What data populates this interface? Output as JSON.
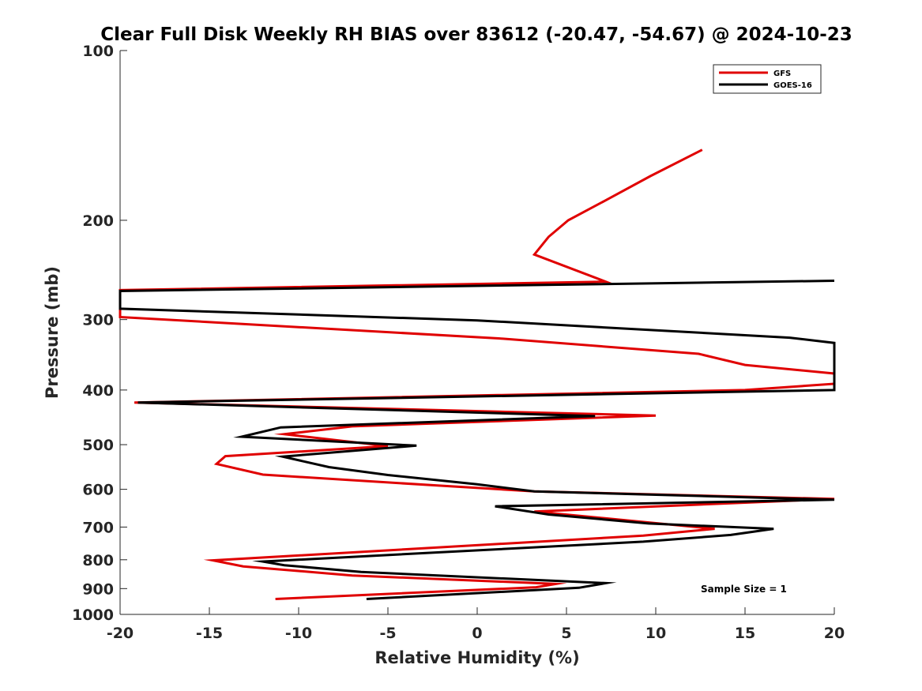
{
  "chart_data": {
    "type": "line",
    "title": "Clear Full Disk Weekly RH BIAS over 83612 (-20.47, -54.67) @ 2024-10-23",
    "xlabel": "Relative Humidity (%)",
    "ylabel": "Pressure (mb)",
    "xlim": [
      -20,
      20
    ],
    "ylim": [
      100,
      1000
    ],
    "yscale": "log",
    "yreversed": true,
    "xticks": [
      -20,
      -15,
      -10,
      -5,
      0,
      5,
      10,
      15,
      20
    ],
    "yticks": [
      100,
      200,
      300,
      400,
      500,
      600,
      700,
      800,
      900,
      1000
    ],
    "xtick_labels": [
      "-20",
      "-15",
      "-10",
      "-5",
      "0",
      "5",
      "10",
      "15",
      "20"
    ],
    "ytick_labels": [
      "100",
      "200",
      "300",
      "400",
      "500",
      "600",
      "700",
      "800",
      "900",
      "1000"
    ],
    "grid": false,
    "legend_position": "top-right",
    "annotation": "Sample Size = 1",
    "series": [
      {
        "name": "GFS",
        "color": "#e00000",
        "points": [
          [
            12.6,
            150
          ],
          [
            9.7,
            167
          ],
          [
            7.1,
            185
          ],
          [
            5.1,
            200
          ],
          [
            4.0,
            214
          ],
          [
            3.2,
            230
          ],
          [
            7.2,
            257
          ],
          [
            -20,
            266
          ],
          [
            -20,
            297
          ],
          [
            1.2,
            324
          ],
          [
            12.4,
            345
          ],
          [
            15.0,
            361
          ],
          [
            20,
            374
          ],
          [
            20,
            390
          ],
          [
            15.0,
            400
          ],
          [
            -19.2,
            421
          ],
          [
            10.0,
            444
          ],
          [
            -7.0,
            464
          ],
          [
            -10.8,
            479
          ],
          [
            -5.0,
            503
          ],
          [
            -14.1,
            524
          ],
          [
            -14.6,
            541
          ],
          [
            -12.0,
            565
          ],
          [
            -2.5,
            590
          ],
          [
            3.2,
            605
          ],
          [
            20,
            624
          ],
          [
            3.2,
            657
          ],
          [
            13.3,
            705
          ],
          [
            9.3,
            725
          ],
          [
            -14.8,
            802
          ],
          [
            -13.1,
            822
          ],
          [
            -7.0,
            853
          ],
          [
            4.4,
            883
          ],
          [
            3.3,
            895
          ],
          [
            -11.3,
            939
          ]
        ]
      },
      {
        "name": "GOES-16",
        "color": "#000000",
        "points": [
          [
            20,
            256
          ],
          [
            -20,
            267
          ],
          [
            -20,
            287
          ],
          [
            0.0,
            301
          ],
          [
            17.5,
            323
          ],
          [
            20,
            330
          ],
          [
            20,
            400
          ],
          [
            -19.0,
            421
          ],
          [
            6.6,
            445
          ],
          [
            -11.0,
            466
          ],
          [
            -13.2,
            484
          ],
          [
            -3.4,
            502
          ],
          [
            -10.9,
            525
          ],
          [
            -8.3,
            548
          ],
          [
            -5.0,
            566
          ],
          [
            0.0,
            588
          ],
          [
            3.2,
            605
          ],
          [
            20,
            626
          ],
          [
            1.0,
            643
          ],
          [
            4.0,
            665
          ],
          [
            9.6,
            690
          ],
          [
            16.6,
            705
          ],
          [
            14.2,
            723
          ],
          [
            9.3,
            743
          ],
          [
            -12.0,
            806
          ],
          [
            -10.8,
            818
          ],
          [
            -6.5,
            841
          ],
          [
            7.2,
            880
          ],
          [
            5.7,
            897
          ],
          [
            -6.2,
            939
          ]
        ]
      }
    ]
  }
}
